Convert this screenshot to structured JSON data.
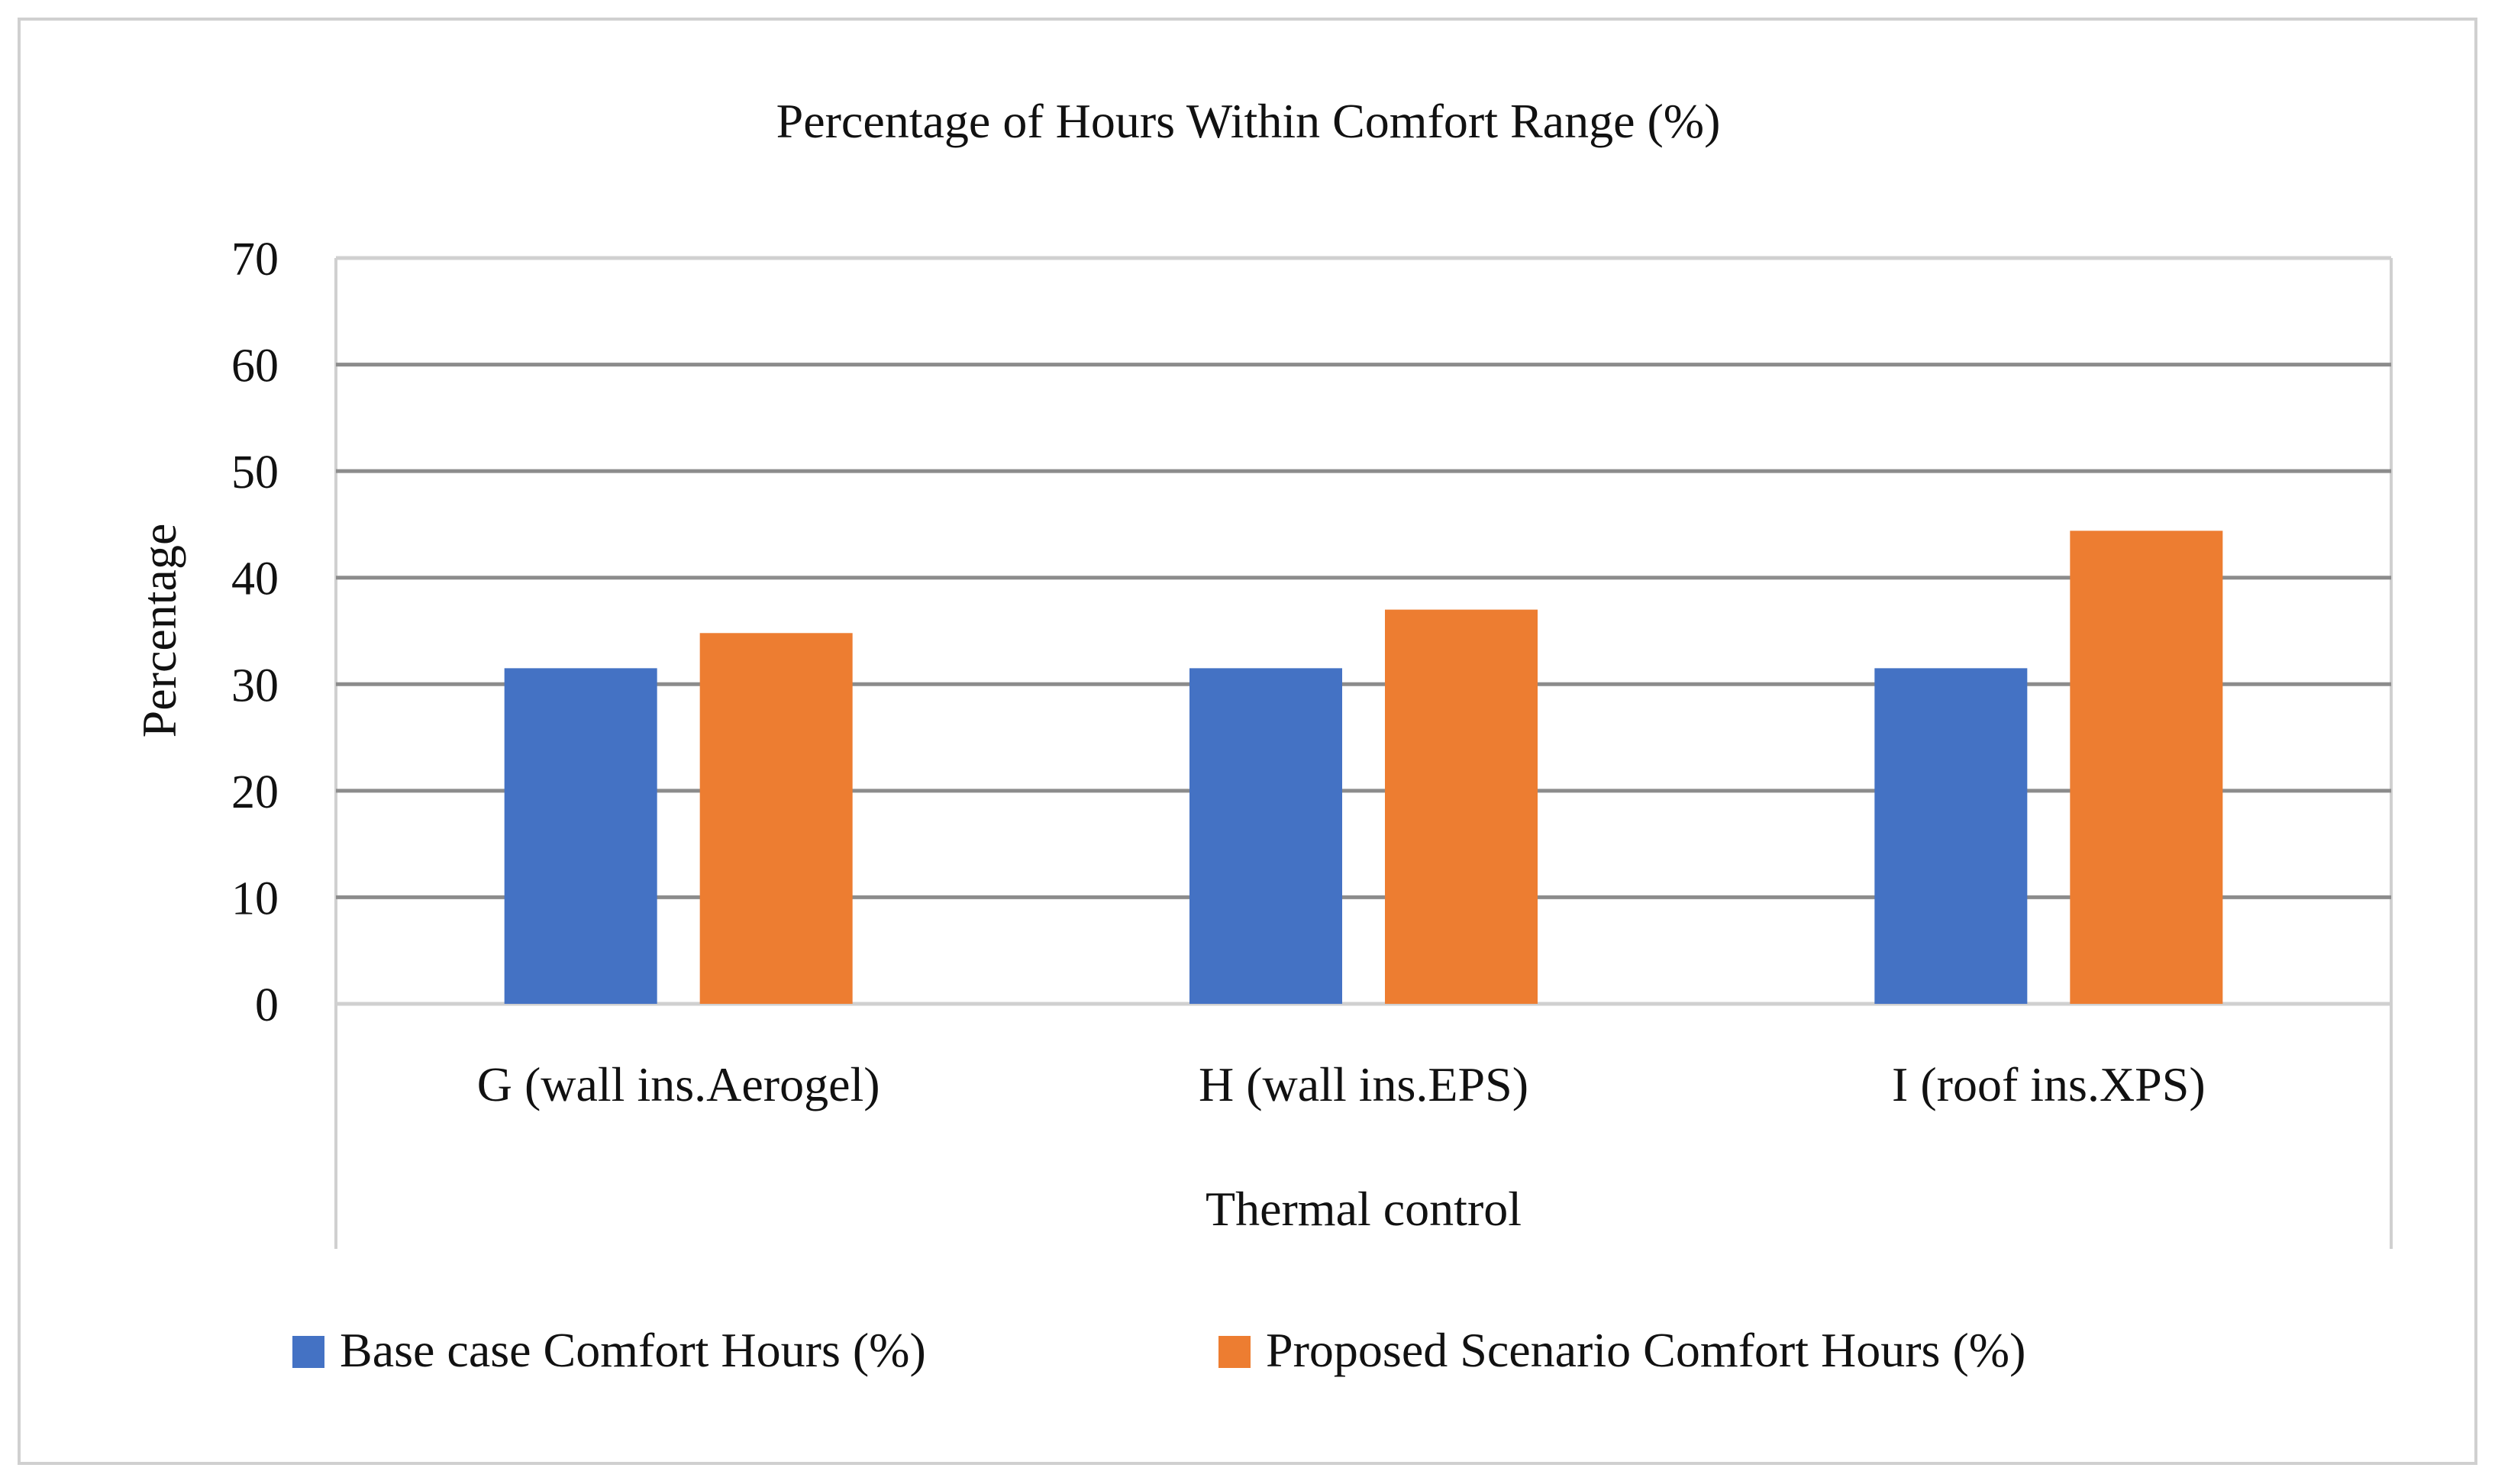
{
  "chart_data": {
    "type": "bar",
    "title": "Percentage of Hours Within Comfort Range  (%)",
    "xlabel": "Thermal control",
    "ylabel": "Percentage",
    "categories": [
      "G (wall ins.Aerogel)",
      "H (wall ins.EPS)",
      "I (roof ins.XPS)"
    ],
    "series": [
      {
        "name": "Base case Comfort Hours (%)",
        "color": "#4472C4",
        "values": [
          31.5,
          31.5,
          31.5
        ]
      },
      {
        "name": "Proposed Scenario Comfort Hours (%)",
        "color": "#ED7D31",
        "values": [
          34.8,
          37.0,
          44.4
        ]
      }
    ],
    "ylim": [
      0,
      70
    ],
    "yticks": [
      0,
      10,
      20,
      30,
      40,
      50,
      60,
      70
    ],
    "grid": true,
    "legend_position": "bottom"
  }
}
